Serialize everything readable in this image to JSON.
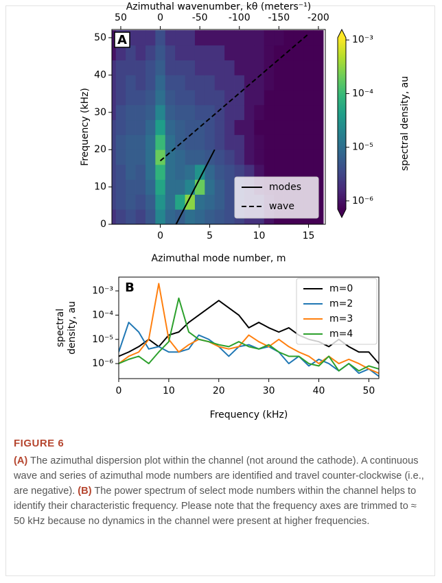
{
  "chart_data": [
    {
      "type": "heatmap",
      "panel_label": "A",
      "xlabel": "Azimuthal mode number, m",
      "ylabel": "Frequency (kHz)",
      "x2label": "Azimuthal wavenumber, kθ (meters⁻¹)",
      "x": [
        -5,
        -4,
        -3,
        -2,
        -1,
        0,
        1,
        2,
        3,
        4,
        5,
        6,
        7,
        8,
        9,
        10,
        11,
        12,
        13,
        14,
        15,
        16
      ],
      "y": [
        2,
        6,
        10,
        14,
        18,
        22,
        26,
        30,
        34,
        38,
        42,
        46,
        50
      ],
      "values": [
        [
          2e-06,
          3e-06,
          4e-06,
          3e-06,
          5e-06,
          2e-05,
          8e-06,
          6e-06,
          1e-05,
          8e-06,
          6e-06,
          5e-06,
          4e-06,
          3e-06,
          2e-06,
          2e-06,
          1e-06,
          5e-07,
          3e-07,
          3e-07,
          3e-07,
          3e-07
        ],
        [
          3e-06,
          4e-06,
          5e-06,
          4e-06,
          6e-06,
          3e-05,
          1e-05,
          5e-05,
          0.0003,
          1e-05,
          8e-06,
          6e-06,
          4e-06,
          3e-06,
          2e-06,
          2e-06,
          1e-06,
          5e-07,
          3e-07,
          3e-07,
          3e-07,
          3e-07
        ],
        [
          3e-06,
          4e-06,
          5e-06,
          5e-06,
          8e-06,
          5e-05,
          1e-05,
          1e-05,
          2e-05,
          0.0002,
          1e-05,
          6e-06,
          4e-06,
          3e-06,
          2e-06,
          1e-06,
          8e-07,
          4e-07,
          3e-07,
          3e-07,
          3e-07,
          3e-07
        ],
        [
          3e-06,
          4e-06,
          6e-06,
          5e-06,
          1e-05,
          8e-05,
          1e-05,
          8e-06,
          1e-05,
          3e-05,
          8e-06,
          5e-06,
          4e-06,
          3e-06,
          2e-06,
          1e-06,
          6e-07,
          3e-07,
          3e-07,
          3e-07,
          3e-07,
          3e-07
        ],
        [
          3e-06,
          5e-06,
          6e-06,
          6e-06,
          1e-05,
          0.0002,
          1e-05,
          8e-06,
          6e-06,
          6e-06,
          5e-06,
          4e-06,
          3e-06,
          2e-06,
          1e-06,
          8e-07,
          5e-07,
          3e-07,
          3e-07,
          3e-07,
          3e-07,
          3e-07
        ],
        [
          3e-06,
          5e-06,
          6e-06,
          6e-06,
          1e-05,
          0.0001,
          1e-05,
          6e-06,
          5e-06,
          5e-06,
          4e-06,
          3e-06,
          2e-06,
          2e-06,
          1e-06,
          8e-07,
          5e-07,
          3e-07,
          3e-07,
          3e-07,
          3e-07,
          3e-07
        ],
        [
          3e-06,
          4e-06,
          5e-06,
          5e-06,
          8e-06,
          4e-05,
          8e-06,
          6e-06,
          5e-06,
          5e-06,
          4e-06,
          3e-06,
          2e-06,
          1e-06,
          1e-06,
          6e-07,
          4e-07,
          3e-07,
          3e-07,
          3e-07,
          3e-07,
          3e-07
        ],
        [
          2e-06,
          4e-06,
          5e-06,
          5e-06,
          6e-06,
          2e-05,
          6e-06,
          5e-06,
          5e-06,
          4e-06,
          4e-06,
          3e-06,
          2e-06,
          2e-06,
          1e-06,
          8e-07,
          5e-07,
          3e-07,
          3e-07,
          3e-07,
          3e-07,
          3e-07
        ],
        [
          2e-06,
          3e-06,
          4e-06,
          4e-06,
          5e-06,
          1e-05,
          5e-06,
          4e-06,
          4e-06,
          3e-06,
          3e-06,
          3e-06,
          2e-06,
          2e-06,
          1e-06,
          1e-06,
          6e-07,
          3e-07,
          3e-07,
          3e-07,
          3e-07,
          3e-07
        ],
        [
          2e-06,
          3e-06,
          4e-06,
          3e-06,
          4e-06,
          8e-06,
          4e-06,
          4e-06,
          3e-06,
          3e-06,
          3e-06,
          2e-06,
          2e-06,
          2e-06,
          1e-06,
          1e-06,
          8e-07,
          4e-07,
          3e-07,
          3e-07,
          3e-07,
          3e-07
        ],
        [
          2e-06,
          3e-06,
          3e-06,
          3e-06,
          4e-06,
          6e-06,
          3e-06,
          3e-06,
          3e-06,
          2e-06,
          2e-06,
          2e-06,
          2e-06,
          1e-06,
          1e-06,
          1e-06,
          8e-07,
          5e-07,
          3e-07,
          3e-07,
          3e-07,
          3e-07
        ],
        [
          1e-06,
          2e-06,
          3e-06,
          2e-06,
          3e-06,
          5e-06,
          3e-06,
          2e-06,
          2e-06,
          2e-06,
          2e-06,
          2e-06,
          1e-06,
          1e-06,
          1e-06,
          1e-06,
          8e-07,
          6e-07,
          4e-07,
          3e-07,
          3e-07,
          3e-07
        ],
        [
          1e-06,
          2e-06,
          2e-06,
          2e-06,
          2e-06,
          4e-06,
          2e-06,
          2e-06,
          2e-06,
          1e-06,
          1e-06,
          1e-06,
          1e-06,
          1e-06,
          1e-06,
          1e-06,
          8e-07,
          8e-07,
          6e-07,
          4e-07,
          3e-07,
          3e-07
        ]
      ],
      "xlim": [
        -4.9,
        16.7
      ],
      "ylim": [
        0,
        52.2
      ],
      "xticks": [
        0,
        5,
        10,
        15
      ],
      "yticks": [
        0,
        10,
        20,
        30,
        40,
        50
      ],
      "x2lim": [
        61.25,
        -208.75
      ],
      "x2ticks": [
        50,
        0,
        -50,
        -100,
        -150,
        -200
      ],
      "colormap": "viridis",
      "cscale": "log",
      "clim": [
        7e-07,
        0.0011
      ],
      "cticks": [
        {
          "value": 1e-06,
          "label": "10⁻⁶"
        },
        {
          "value": 1e-05,
          "label": "10⁻⁵"
        },
        {
          "value": 0.0001,
          "label": "10⁻⁴"
        },
        {
          "value": 0.001,
          "label": "10⁻³"
        }
      ],
      "clabel": "spectral density, au",
      "lines": [
        {
          "name": "modes",
          "color": "#000000",
          "style": "solid",
          "x": [
            1.6,
            5.5
          ],
          "y": [
            0,
            20
          ]
        },
        {
          "name": "wave",
          "color": "#000000",
          "style": "dashed",
          "x": [
            0,
            15
          ],
          "y": [
            17,
            51
          ]
        }
      ],
      "legend": "lower right"
    },
    {
      "type": "line",
      "panel_label": "B",
      "xlabel": "Frequency (kHz)",
      "ylabel": [
        "spectral",
        "density, au"
      ],
      "x": [
        0,
        2,
        4,
        6,
        8,
        10,
        12,
        14,
        16,
        18,
        20,
        22,
        24,
        26,
        28,
        30,
        32,
        34,
        36,
        38,
        40,
        42,
        44,
        46,
        48,
        50,
        52
      ],
      "series": [
        {
          "name": "m=0",
          "color": "#000000",
          "values": [
            2e-06,
            3e-06,
            5e-06,
            1e-05,
            5e-06,
            1.5e-05,
            2e-05,
            5e-05,
            0.0001,
            0.0002,
            0.0004,
            0.0002,
            0.0001,
            3e-05,
            5e-05,
            3e-05,
            2e-05,
            3e-05,
            1.5e-05,
            1e-05,
            8e-06,
            5e-06,
            1e-05,
            5e-06,
            3e-06,
            3e-06,
            1e-06
          ]
        },
        {
          "name": "m=2",
          "color": "#1f77b4",
          "values": [
            3e-06,
            5e-05,
            2e-05,
            4e-06,
            5e-06,
            3e-06,
            3e-06,
            4e-06,
            1.5e-05,
            1e-05,
            5e-06,
            2e-06,
            5e-06,
            6e-06,
            4e-06,
            5e-06,
            3e-06,
            1e-06,
            2e-06,
            8e-07,
            1.5e-06,
            1e-06,
            5e-07,
            1e-06,
            4e-07,
            6e-07,
            3e-07
          ]
        },
        {
          "name": "m=3",
          "color": "#ff7f0e",
          "values": [
            1e-06,
            2e-06,
            3e-06,
            1e-05,
            0.002,
            1e-05,
            3e-06,
            6e-06,
            1e-05,
            8e-06,
            5e-06,
            4e-06,
            5e-06,
            1.5e-05,
            8e-06,
            5e-06,
            1e-05,
            5e-06,
            3e-06,
            2e-06,
            1e-06,
            2e-06,
            1e-06,
            1.5e-06,
            1e-06,
            6e-07,
            4e-07
          ]
        },
        {
          "name": "m=4",
          "color": "#2ca02c",
          "values": [
            1e-06,
            1.5e-06,
            2e-06,
            1e-06,
            3e-06,
            8e-06,
            0.0005,
            2e-05,
            1e-05,
            8e-06,
            6e-06,
            5e-06,
            8e-06,
            5e-06,
            4e-06,
            6e-06,
            3e-06,
            2e-06,
            2e-06,
            1e-06,
            8e-07,
            2e-06,
            5e-07,
            1e-06,
            5e-07,
            8e-07,
            6e-07
          ]
        }
      ],
      "xlim": [
        0,
        52
      ],
      "xticks": [
        0,
        10,
        20,
        30,
        40,
        50
      ],
      "yscale": "log",
      "ylim": [
        2.4e-07,
        0.0037
      ],
      "yticks": [
        {
          "value": 1e-06,
          "label": "10⁻⁶"
        },
        {
          "value": 1e-05,
          "label": "10⁻⁵"
        },
        {
          "value": 0.0001,
          "label": "10⁻⁴"
        },
        {
          "value": 0.001,
          "label": "10⁻³"
        }
      ],
      "legend": "upper right"
    }
  ],
  "caption": {
    "label": "FIGURE 6",
    "runs": [
      {
        "text": "(A)",
        "bold": true
      },
      {
        "text": " The azimuthal dispersion plot within the channel (not around the cathode). A continuous wave and series of azimuthal mode numbers are identified and travel counter-clockwise (i.e., are negative). ",
        "bold": false
      },
      {
        "text": "(B)",
        "bold": true
      },
      {
        "text": " The power spectrum of select mode numbers within the channel helps to identify their characteristic frequency. Please note that the frequency axes are trimmed to ≈ 50 kHz because no dynamics in the channel were present at higher frequencies.",
        "bold": false
      }
    ]
  }
}
